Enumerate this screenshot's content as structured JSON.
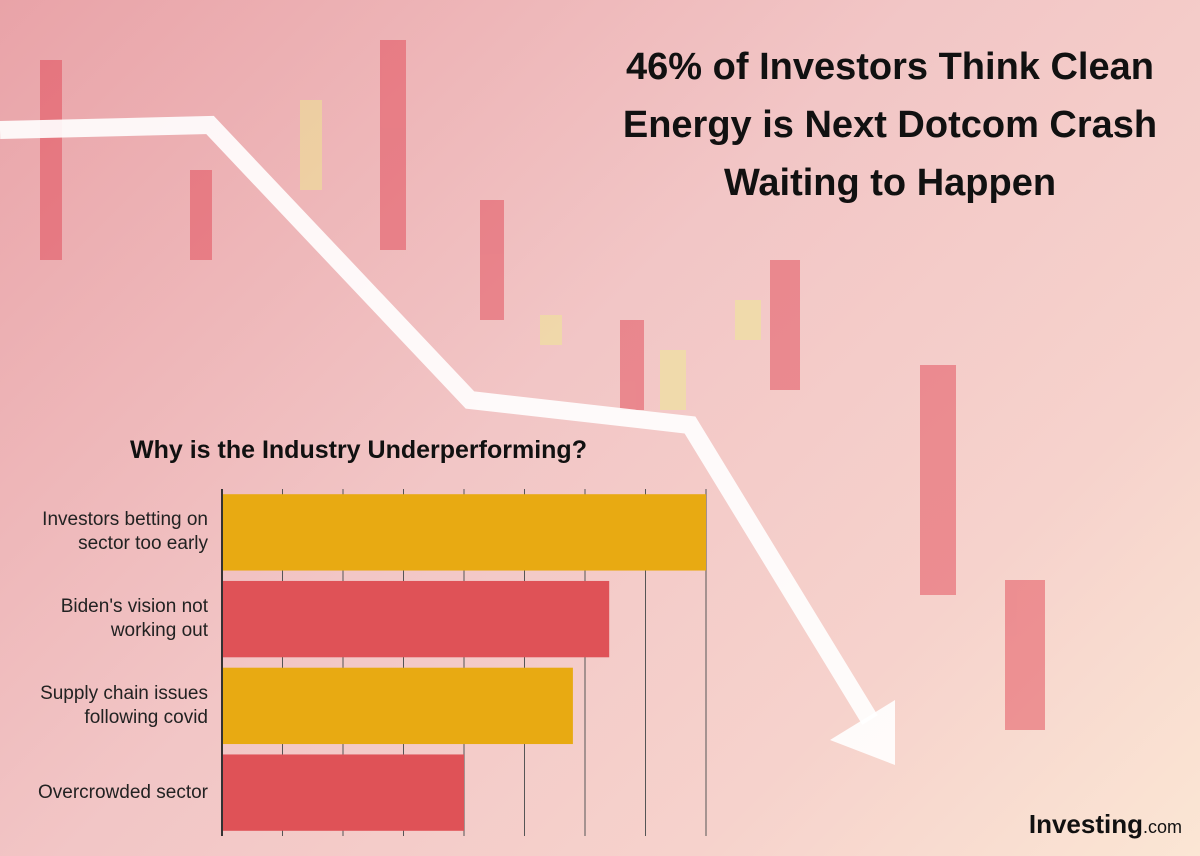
{
  "chart_data": {
    "type": "barh",
    "title": "46% of Investors Think Clean Energy is Next Dotcom Crash Waiting to Happen",
    "subtitle": "Why is the Industry Underperforming?",
    "categories": [
      "Investors betting on sector too early",
      "Biden's vision not working out",
      "Supply chain issues following covid",
      "Overcrowded sector"
    ],
    "values": [
      8,
      6.4,
      5.8,
      4
    ],
    "colors": [
      "#e8aa12",
      "#df5257",
      "#e8aa12",
      "#df5257"
    ],
    "xlim": [
      0,
      8
    ],
    "xticks": [
      0,
      1,
      2,
      3,
      4,
      5,
      6,
      7,
      8
    ],
    "grid": true
  },
  "logo": {
    "name": "Investing",
    "suffix": ".com"
  }
}
